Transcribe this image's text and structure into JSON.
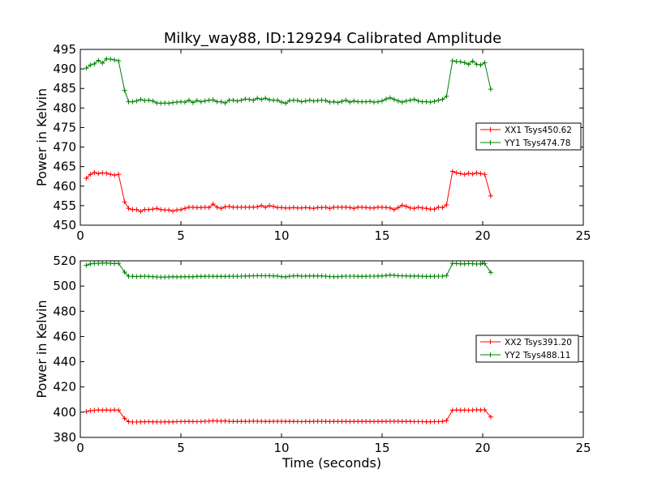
{
  "figure": {
    "title": "Milky_way88, ID:129294 Calibrated Amplitude"
  },
  "chart_data": [
    {
      "type": "line",
      "panel": "top",
      "title": "Milky_way88, ID:129294 Calibrated Amplitude",
      "xlabel": "",
      "ylabel": "Power in Kelvin",
      "xlim": [
        0,
        25
      ],
      "ylim": [
        450,
        495
      ],
      "xticks": [
        0,
        5,
        10,
        15,
        20,
        25
      ],
      "yticks": [
        450,
        455,
        460,
        465,
        470,
        475,
        480,
        485,
        490,
        495
      ],
      "grid": false,
      "legend": "center-right",
      "marker": "+",
      "x": [
        0.3,
        0.5,
        0.7,
        0.9,
        1.1,
        1.3,
        1.5,
        1.7,
        1.9,
        2.2,
        2.4,
        2.6,
        2.8,
        3.0,
        3.2,
        3.4,
        3.6,
        3.8,
        4.0,
        4.2,
        4.4,
        4.6,
        4.8,
        5.0,
        5.2,
        5.4,
        5.6,
        5.8,
        6.0,
        6.2,
        6.4,
        6.6,
        6.8,
        7.0,
        7.2,
        7.4,
        7.6,
        7.8,
        8.0,
        8.2,
        8.4,
        8.6,
        8.8,
        9.0,
        9.2,
        9.4,
        9.6,
        9.8,
        10.0,
        10.2,
        10.4,
        10.6,
        10.8,
        11.0,
        11.2,
        11.4,
        11.6,
        11.8,
        12.0,
        12.2,
        12.4,
        12.6,
        12.8,
        13.0,
        13.2,
        13.4,
        13.6,
        13.8,
        14.0,
        14.2,
        14.4,
        14.6,
        14.8,
        15.0,
        15.2,
        15.4,
        15.6,
        15.8,
        16.0,
        16.2,
        16.4,
        16.6,
        16.8,
        17.0,
        17.2,
        17.4,
        17.6,
        17.8,
        18.0,
        18.2,
        18.5,
        18.7,
        18.9,
        19.1,
        19.3,
        19.5,
        19.7,
        19.9,
        20.1,
        20.4
      ],
      "series": [
        {
          "name": "XX1 Tsys450.62",
          "color": "#ff0000",
          "values": [
            462.0,
            463.0,
            463.5,
            463.2,
            463.4,
            463.3,
            463.0,
            462.8,
            463.0,
            456.0,
            454.3,
            454.0,
            454.0,
            453.5,
            454.0,
            454.0,
            454.1,
            454.3,
            454.0,
            453.9,
            453.9,
            453.6,
            453.9,
            454.0,
            454.3,
            454.6,
            454.6,
            454.5,
            454.5,
            454.6,
            454.5,
            455.4,
            454.6,
            454.3,
            454.7,
            454.8,
            454.6,
            454.6,
            454.6,
            454.6,
            454.6,
            454.6,
            454.7,
            455.0,
            454.6,
            455.0,
            454.8,
            454.5,
            454.5,
            454.4,
            454.4,
            454.5,
            454.4,
            454.4,
            454.5,
            454.4,
            454.3,
            454.5,
            454.5,
            454.6,
            454.3,
            454.6,
            454.6,
            454.6,
            454.6,
            454.5,
            454.3,
            454.6,
            454.6,
            454.5,
            454.4,
            454.4,
            454.6,
            454.6,
            454.5,
            454.4,
            454.0,
            454.5,
            455.1,
            454.8,
            454.4,
            454.3,
            454.6,
            454.4,
            454.3,
            454.1,
            454.1,
            454.6,
            454.5,
            455.2,
            463.8,
            463.4,
            463.2,
            463.0,
            463.3,
            463.1,
            463.4,
            463.2,
            463.0,
            457.5
          ]
        },
        {
          "name": "YY1 Tsys474.78",
          "color": "#008000",
          "values": [
            490.2,
            491.0,
            491.3,
            492.2,
            491.5,
            492.6,
            492.5,
            492.3,
            492.1,
            484.5,
            481.6,
            481.6,
            481.8,
            482.2,
            481.9,
            482.0,
            481.8,
            481.3,
            481.2,
            481.3,
            481.2,
            481.4,
            481.5,
            481.6,
            481.5,
            482.0,
            481.4,
            481.9,
            481.6,
            481.8,
            482.0,
            482.1,
            481.6,
            481.6,
            481.3,
            482.0,
            482.0,
            481.8,
            482.0,
            482.3,
            482.2,
            482.0,
            482.5,
            482.2,
            482.5,
            482.1,
            482.0,
            482.0,
            481.5,
            481.2,
            481.9,
            482.0,
            481.9,
            481.6,
            481.8,
            482.0,
            481.8,
            481.9,
            482.0,
            481.9,
            481.5,
            481.6,
            481.4,
            481.7,
            482.0,
            481.5,
            481.8,
            481.6,
            481.6,
            481.6,
            481.7,
            481.5,
            481.6,
            481.8,
            482.3,
            482.6,
            482.2,
            481.8,
            481.5,
            481.8,
            482.0,
            482.2,
            481.8,
            481.6,
            481.6,
            481.5,
            481.7,
            482.0,
            482.2,
            483.0,
            492.1,
            491.9,
            491.8,
            491.6,
            491.2,
            492.0,
            491.2,
            491.0,
            491.6,
            484.8
          ]
        }
      ]
    },
    {
      "type": "line",
      "panel": "bottom",
      "title": "",
      "xlabel": "Time (seconds)",
      "ylabel": "Power in Kelvin",
      "xlim": [
        0,
        25
      ],
      "ylim": [
        380,
        520
      ],
      "xticks": [
        0,
        5,
        10,
        15,
        20,
        25
      ],
      "yticks": [
        380,
        400,
        420,
        440,
        460,
        480,
        500,
        520
      ],
      "grid": false,
      "legend": "center-right",
      "marker": "+",
      "x": [
        0.3,
        0.5,
        0.7,
        0.9,
        1.1,
        1.3,
        1.5,
        1.7,
        1.9,
        2.2,
        2.4,
        2.6,
        2.8,
        3.0,
        3.2,
        3.4,
        3.6,
        3.8,
        4.0,
        4.2,
        4.4,
        4.6,
        4.8,
        5.0,
        5.2,
        5.4,
        5.6,
        5.8,
        6.0,
        6.2,
        6.4,
        6.6,
        6.8,
        7.0,
        7.2,
        7.4,
        7.6,
        7.8,
        8.0,
        8.2,
        8.4,
        8.6,
        8.8,
        9.0,
        9.2,
        9.4,
        9.6,
        9.8,
        10.0,
        10.2,
        10.4,
        10.6,
        10.8,
        11.0,
        11.2,
        11.4,
        11.6,
        11.8,
        12.0,
        12.2,
        12.4,
        12.6,
        12.8,
        13.0,
        13.2,
        13.4,
        13.6,
        13.8,
        14.0,
        14.2,
        14.4,
        14.6,
        14.8,
        15.0,
        15.2,
        15.4,
        15.6,
        15.8,
        16.0,
        16.2,
        16.4,
        16.6,
        16.8,
        17.0,
        17.2,
        17.4,
        17.6,
        17.8,
        18.0,
        18.2,
        18.5,
        18.7,
        18.9,
        19.1,
        19.3,
        19.5,
        19.7,
        19.9,
        20.1,
        20.4
      ],
      "series": [
        {
          "name": "XX2 Tsys391.20",
          "color": "#ff0000",
          "values": [
            400.5,
            401.2,
            401.5,
            401.8,
            401.6,
            401.8,
            401.5,
            401.8,
            401.6,
            395.0,
            392.5,
            392.2,
            392.2,
            392.3,
            392.4,
            392.5,
            392.3,
            392.3,
            392.2,
            392.4,
            392.3,
            392.3,
            392.5,
            392.6,
            392.6,
            392.7,
            392.6,
            392.5,
            392.6,
            392.8,
            392.9,
            393.2,
            393.0,
            392.9,
            393.0,
            392.8,
            392.7,
            392.7,
            392.8,
            392.7,
            392.8,
            392.9,
            392.8,
            392.8,
            392.7,
            392.7,
            392.8,
            392.8,
            392.8,
            392.7,
            392.8,
            392.7,
            392.6,
            392.5,
            392.7,
            392.6,
            392.7,
            392.8,
            392.8,
            392.7,
            392.6,
            392.8,
            392.7,
            392.7,
            392.7,
            392.6,
            392.7,
            392.7,
            392.8,
            392.7,
            392.7,
            392.6,
            392.7,
            392.8,
            392.7,
            392.8,
            392.8,
            392.8,
            392.7,
            392.7,
            392.7,
            392.5,
            392.5,
            392.5,
            392.4,
            392.4,
            392.5,
            392.5,
            392.7,
            393.3,
            401.6,
            401.8,
            401.6,
            401.7,
            401.5,
            401.7,
            401.9,
            401.7,
            401.9,
            396.2
          ]
        },
        {
          "name": "YY2 Tsys488.11",
          "color": "#008000",
          "values": [
            516.5,
            517.5,
            518.0,
            518.0,
            518.2,
            518.2,
            518.0,
            517.8,
            518.0,
            511.0,
            507.8,
            507.7,
            507.5,
            507.6,
            507.8,
            507.6,
            507.4,
            507.2,
            507.1,
            507.1,
            507.2,
            507.4,
            507.2,
            507.3,
            507.4,
            507.4,
            507.3,
            507.6,
            507.6,
            507.7,
            507.8,
            507.7,
            507.6,
            507.6,
            507.6,
            507.7,
            507.8,
            507.7,
            507.8,
            507.9,
            508.0,
            508.1,
            508.2,
            508.2,
            508.1,
            508.2,
            508.0,
            507.9,
            507.4,
            507.2,
            507.8,
            508.0,
            508.2,
            507.8,
            507.9,
            508.0,
            508.0,
            508.0,
            508.0,
            507.8,
            507.5,
            507.4,
            507.4,
            507.6,
            507.8,
            507.8,
            507.8,
            507.6,
            507.6,
            507.7,
            507.8,
            507.8,
            507.9,
            508.0,
            508.4,
            508.7,
            508.5,
            508.2,
            508.1,
            508.0,
            507.9,
            507.9,
            507.9,
            507.7,
            507.6,
            507.6,
            507.7,
            507.8,
            507.8,
            508.3,
            518.0,
            517.8,
            517.6,
            517.6,
            517.8,
            517.7,
            517.4,
            517.6,
            517.8,
            510.8
          ]
        }
      ]
    }
  ]
}
